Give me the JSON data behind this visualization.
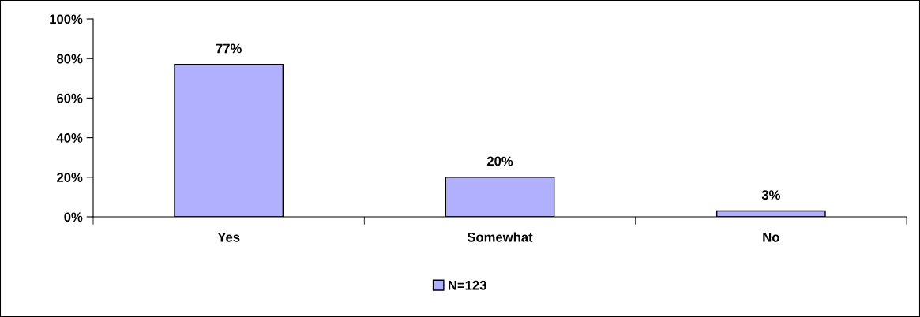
{
  "chart_data": {
    "type": "bar",
    "categories": [
      "Yes",
      "Somewhat",
      "No"
    ],
    "series": [
      {
        "name": "N=123",
        "color": "#b0b0ff",
        "values": [
          77,
          20,
          3
        ]
      }
    ],
    "value_labels": [
      "77%",
      "20%",
      "3%"
    ],
    "ylim": [
      0,
      100
    ],
    "yticks": [
      {
        "value": 0,
        "label": "0%"
      },
      {
        "value": 20,
        "label": "20%"
      },
      {
        "value": 40,
        "label": "40%"
      },
      {
        "value": 60,
        "label": "60%"
      },
      {
        "value": 80,
        "label": "80%"
      },
      {
        "value": 100,
        "label": "100%"
      }
    ],
    "grid": false,
    "legend": "bottom"
  }
}
